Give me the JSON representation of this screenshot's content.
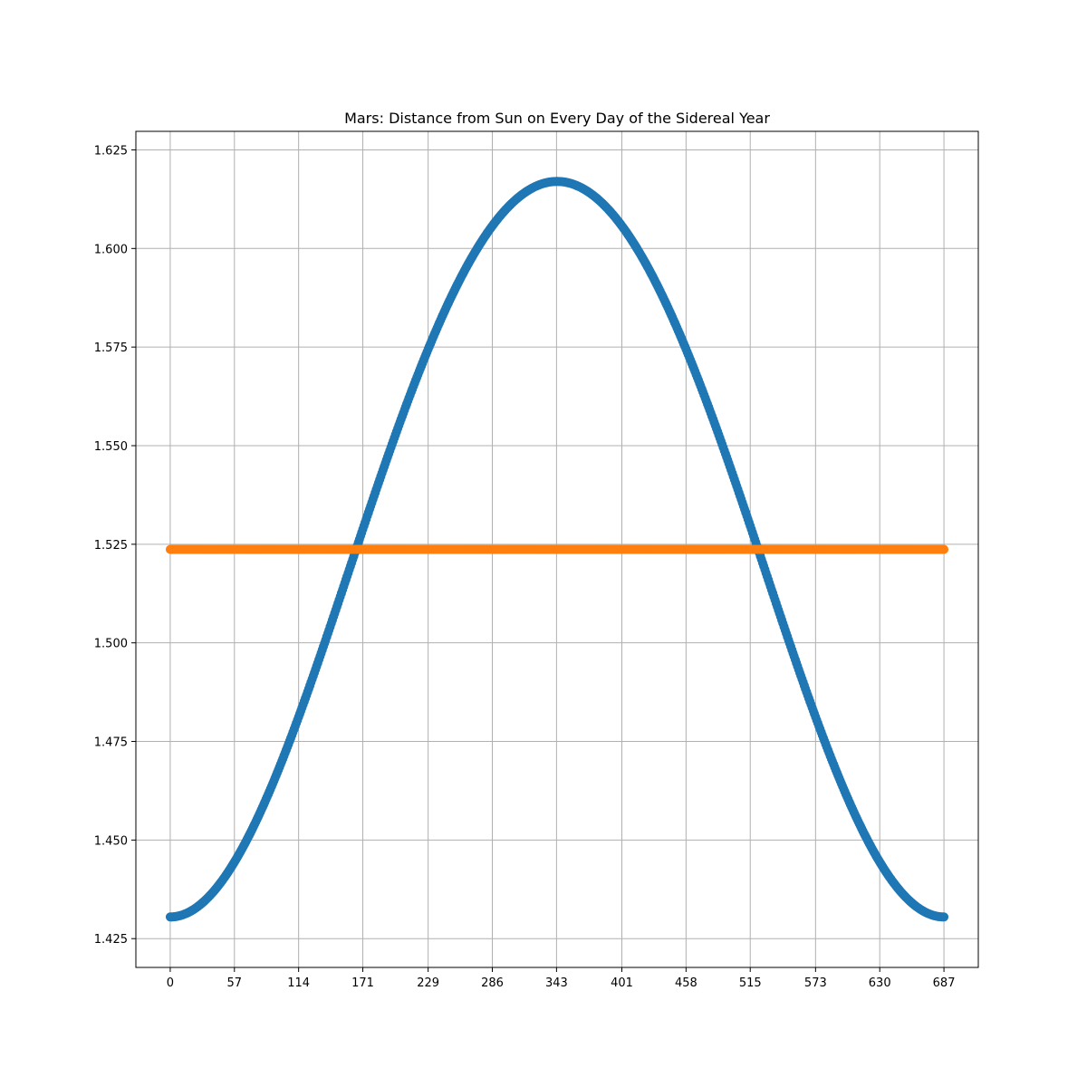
{
  "chart_data": {
    "type": "scatter",
    "title": "Mars: Distance from Sun on Every Day of the Sidereal Year",
    "xlabel": "",
    "ylabel": "",
    "xlim": [
      -30.5,
      717.5
    ],
    "ylim": [
      1.4177,
      1.6297
    ],
    "x_ticks": [
      0,
      57,
      114,
      171,
      229,
      286,
      343,
      401,
      458,
      515,
      573,
      630,
      687
    ],
    "x_tick_labels": [
      "0",
      "57",
      "114",
      "171",
      "229",
      "286",
      "343",
      "401",
      "458",
      "515",
      "573",
      "630",
      "687"
    ],
    "y_ticks": [
      1.425,
      1.45,
      1.475,
      1.5,
      1.525,
      1.55,
      1.575,
      1.6,
      1.625
    ],
    "y_tick_labels": [
      "1.425",
      "1.450",
      "1.475",
      "1.500",
      "1.525",
      "1.550",
      "1.575",
      "1.600",
      "1.625"
    ],
    "grid": true,
    "legend": "none",
    "days": 687,
    "series": [
      {
        "model": "orbit-distance",
        "color": "#1f77b4",
        "min": 1.4305,
        "max": 1.617,
        "peak_day": 346
      },
      {
        "model": "constant",
        "color": "#ff7f0e",
        "value": 1.5237
      }
    ]
  }
}
